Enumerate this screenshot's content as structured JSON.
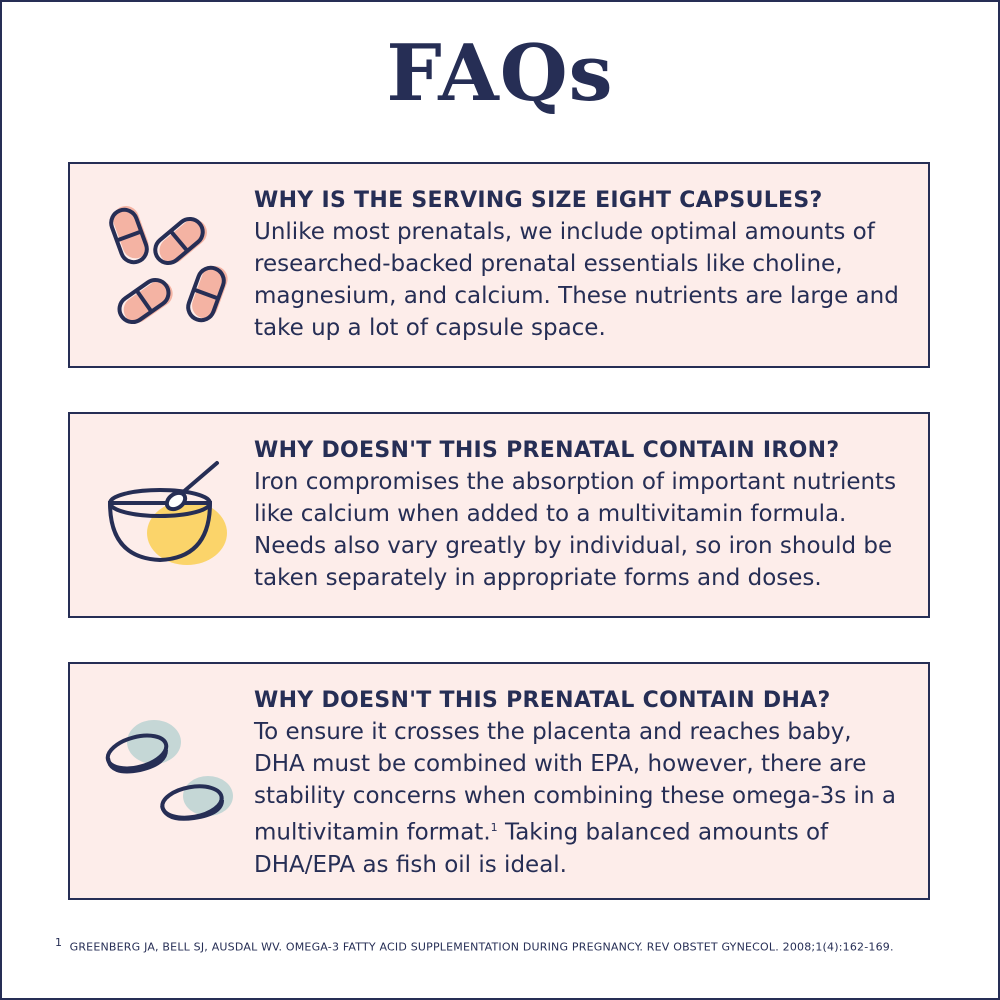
{
  "title": "FAQs",
  "faqs": [
    {
      "question": "WHY IS THE SERVING SIZE EIGHT CAPSULES?",
      "answer": "Unlike most prenatals, we include optimal amounts of researched-backed prenatal essentials like choline, magnesium, and calcium. These nutrients are large and take up a lot of capsule space.",
      "icon": "capsules-icon"
    },
    {
      "question": "WHY DOESN'T THIS PRENATAL CONTAIN IRON?",
      "answer": "Iron compromises the absorption of important nutrients like calcium when added to a multivitamin formula. Needs also vary greatly by individual, so iron should be taken separately in appropriate forms and doses.",
      "icon": "bowl-spoon-icon"
    },
    {
      "question": "WHY DOESN'T THIS PRENATAL CONTAIN DHA?",
      "answer_before": "To ensure it crosses the placenta and reaches baby, DHA must be combined with EPA, however, there are stability concerns when combining these omega-3s in a multivitamin format.",
      "footnote_mark": "1",
      "answer_after": " Taking balanced amounts of DHA/EPA as fish oil is ideal.",
      "icon": "softgels-icon"
    }
  ],
  "footnote": {
    "mark": "1",
    "text": "GREENBERG JA, BELL SJ, AUSDAL WV. OMEGA-3 FATTY ACID SUPPLEMENTATION DURING PREGNANCY. REV OBSTET GYNECOL. 2008;1(4):162-169."
  },
  "colors": {
    "navy": "#262e55",
    "card": "#fdedea",
    "pink": "#f4b3a3",
    "yellow": "#fbd46a",
    "teal": "#c5d7d6"
  }
}
